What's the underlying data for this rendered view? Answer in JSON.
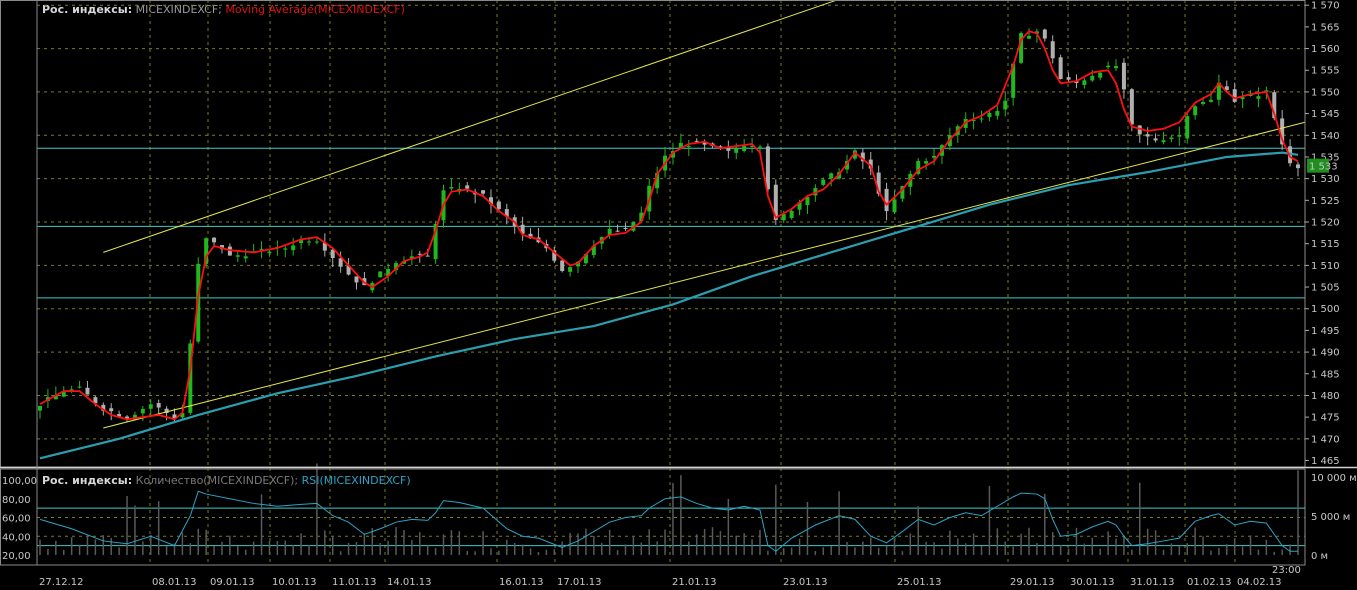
{
  "header_main": {
    "group": "Рос. индексы:",
    "symbol": "MICEXINDEXCF;",
    "indicator": "Moving Average(MICEXINDEXCF)"
  },
  "header_sub": {
    "group": "Рос. индексы:",
    "volume": "Количество(MICEXINDEXCF);",
    "rsi": "RSI(MICEXINDEXCF)"
  },
  "colors": {
    "up": "#1fb81f",
    "down": "#b0b0b0",
    "ma": "#ff1010",
    "ma_long": "#2a9fb0",
    "channel": "#e6e64a",
    "level": "#40c8c8",
    "rsi": "#2aa4c8",
    "volume": "#5a5a5a",
    "grid": "#7a7a2a",
    "last_price_bg": "#1e8f1e"
  },
  "last_price": "1 533",
  "time_label": "23:00",
  "chart_data": [
    {
      "type": "candlestick",
      "title": "",
      "y_ticks": [
        "1 465",
        "1 470",
        "1 475",
        "1 480",
        "1 485",
        "1 490",
        "1 495",
        "1 500",
        "1 505",
        "1 510",
        "1 515",
        "1 520",
        "1 525",
        "1 530",
        "1 535",
        "1 540",
        "1 545",
        "1 550",
        "1 555",
        "1 560",
        "1 565",
        "1 570"
      ],
      "ylim": [
        1463.5,
        1571.2
      ],
      "date_labels": [
        "27.12.12",
        "08.01.13",
        "09.01.13",
        "10.01.13",
        "11.01.13",
        "14.01.13",
        "16.01.13",
        "17.01.13",
        "21.01.13",
        "23.01.13",
        "25.01.13",
        "29.01.13",
        "30.01.13",
        "31.01.13",
        "01.02.13",
        "04.02.13"
      ],
      "close_path": [
        [
          0,
          1478
        ],
        [
          3,
          1481
        ],
        [
          5,
          1481.5
        ],
        [
          8,
          1477
        ],
        [
          11,
          1475
        ],
        [
          14,
          1478
        ],
        [
          17,
          1475
        ],
        [
          18,
          1476
        ],
        [
          19,
          1492
        ],
        [
          20,
          1510
        ],
        [
          21,
          1516
        ],
        [
          23,
          1514
        ],
        [
          24,
          1512
        ],
        [
          27,
          1513
        ],
        [
          31,
          1514
        ],
        [
          33,
          1516
        ],
        [
          35,
          1516
        ],
        [
          37,
          1512
        ],
        [
          39,
          1508
        ],
        [
          41,
          1505
        ],
        [
          43,
          1508
        ],
        [
          45,
          1511
        ],
        [
          47,
          1512
        ],
        [
          49,
          1512
        ],
        [
          50,
          1520
        ],
        [
          51,
          1527
        ],
        [
          53,
          1528
        ],
        [
          56,
          1526
        ],
        [
          59,
          1521
        ],
        [
          61,
          1517
        ],
        [
          64,
          1514
        ],
        [
          66,
          1509
        ],
        [
          68,
          1511
        ],
        [
          70,
          1515
        ],
        [
          72,
          1518
        ],
        [
          74,
          1518
        ],
        [
          76,
          1522
        ],
        [
          77,
          1528
        ],
        [
          79,
          1535
        ],
        [
          81,
          1538
        ],
        [
          83,
          1538
        ],
        [
          85,
          1537
        ],
        [
          87,
          1536
        ],
        [
          89,
          1538
        ],
        [
          91,
          1538
        ],
        [
          92,
          1528
        ],
        [
          93,
          1520
        ],
        [
          95,
          1523
        ],
        [
          98,
          1528
        ],
        [
          101,
          1532
        ],
        [
          103,
          1536
        ],
        [
          105,
          1532
        ],
        [
          107,
          1522
        ],
        [
          109,
          1528
        ],
        [
          111,
          1534
        ],
        [
          113,
          1535
        ],
        [
          115,
          1540
        ],
        [
          117,
          1544
        ],
        [
          119,
          1544
        ],
        [
          121,
          1546
        ],
        [
          122,
          1548
        ],
        [
          123,
          1556
        ],
        [
          124,
          1563
        ],
        [
          126,
          1564
        ],
        [
          127,
          1562
        ],
        [
          128,
          1558
        ],
        [
          129,
          1553
        ],
        [
          131,
          1552
        ],
        [
          134,
          1555
        ],
        [
          136,
          1556
        ],
        [
          137,
          1550
        ],
        [
          138,
          1542
        ],
        [
          139,
          1540
        ],
        [
          141,
          1539
        ],
        [
          144,
          1540
        ],
        [
          145,
          1545
        ],
        [
          146,
          1547
        ],
        [
          148,
          1548
        ],
        [
          149,
          1552
        ],
        [
          150,
          1551
        ],
        [
          151,
          1548
        ],
        [
          153,
          1549
        ],
        [
          155,
          1550
        ],
        [
          156,
          1544
        ],
        [
          157,
          1538
        ],
        [
          158,
          1534
        ],
        [
          159,
          1533
        ]
      ],
      "moving_average": [
        [
          0,
          1478
        ],
        [
          3,
          1481
        ],
        [
          5,
          1481
        ],
        [
          7,
          1478
        ],
        [
          9,
          1475.5
        ],
        [
          11,
          1474.5
        ],
        [
          13,
          1475
        ],
        [
          15,
          1475.5
        ],
        [
          17,
          1474.5
        ],
        [
          18,
          1476
        ],
        [
          19,
          1486
        ],
        [
          20,
          1503
        ],
        [
          21,
          1512
        ],
        [
          22,
          1514.5
        ],
        [
          24,
          1513.5
        ],
        [
          27,
          1513
        ],
        [
          30,
          1514
        ],
        [
          33,
          1516
        ],
        [
          35,
          1516.5
        ],
        [
          37,
          1514
        ],
        [
          39,
          1510
        ],
        [
          41,
          1506
        ],
        [
          42,
          1505
        ],
        [
          44,
          1507.5
        ],
        [
          46,
          1511
        ],
        [
          48,
          1512
        ],
        [
          49,
          1513
        ],
        [
          50,
          1518
        ],
        [
          51,
          1524
        ],
        [
          52,
          1527
        ],
        [
          54,
          1527.5
        ],
        [
          56,
          1526
        ],
        [
          58,
          1522.5
        ],
        [
          60,
          1520
        ],
        [
          61,
          1517
        ],
        [
          63,
          1516
        ],
        [
          65,
          1513
        ],
        [
          67,
          1510
        ],
        [
          68,
          1510.5
        ],
        [
          70,
          1514.5
        ],
        [
          72,
          1517
        ],
        [
          74,
          1517.5
        ],
        [
          76,
          1520
        ],
        [
          77,
          1525
        ],
        [
          78,
          1531
        ],
        [
          80,
          1536
        ],
        [
          82,
          1538
        ],
        [
          84,
          1538.5
        ],
        [
          86,
          1537
        ],
        [
          88,
          1537.5
        ],
        [
          90,
          1538
        ],
        [
          91,
          1536
        ],
        [
          92,
          1526
        ],
        [
          93,
          1521
        ],
        [
          95,
          1523
        ],
        [
          97,
          1526
        ],
        [
          99,
          1527.5
        ],
        [
          101,
          1531
        ],
        [
          103,
          1536
        ],
        [
          105,
          1533
        ],
        [
          106,
          1527
        ],
        [
          107,
          1524
        ],
        [
          109,
          1527.5
        ],
        [
          111,
          1532
        ],
        [
          113,
          1534
        ],
        [
          115,
          1539
        ],
        [
          117,
          1543
        ],
        [
          119,
          1544.5
        ],
        [
          121,
          1547
        ],
        [
          123,
          1556
        ],
        [
          124,
          1562
        ],
        [
          125,
          1564
        ],
        [
          126,
          1563.5
        ],
        [
          127,
          1560
        ],
        [
          128,
          1555
        ],
        [
          129,
          1552
        ],
        [
          131,
          1552.5
        ],
        [
          133,
          1554.5
        ],
        [
          135,
          1555
        ],
        [
          136,
          1552
        ],
        [
          137,
          1546
        ],
        [
          138,
          1542
        ],
        [
          140,
          1541
        ],
        [
          142,
          1541.5
        ],
        [
          144,
          1543
        ],
        [
          146,
          1547.5
        ],
        [
          148,
          1549.5
        ],
        [
          149,
          1552
        ],
        [
          150,
          1550
        ],
        [
          151,
          1548.5
        ],
        [
          153,
          1549.5
        ],
        [
          155,
          1550
        ],
        [
          156,
          1545
        ],
        [
          157,
          1539
        ],
        [
          158,
          1535
        ],
        [
          159,
          1534
        ]
      ],
      "long_ma": [
        [
          0,
          1465.5
        ],
        [
          10,
          1470
        ],
        [
          20,
          1475.5
        ],
        [
          30,
          1480.5
        ],
        [
          40,
          1484.5
        ],
        [
          50,
          1489
        ],
        [
          60,
          1493
        ],
        [
          70,
          1496
        ],
        [
          80,
          1501
        ],
        [
          90,
          1507.5
        ],
        [
          100,
          1513
        ],
        [
          110,
          1518.5
        ],
        [
          120,
          1524
        ],
        [
          130,
          1528.5
        ],
        [
          140,
          1531.5
        ],
        [
          150,
          1535
        ],
        [
          157,
          1536
        ],
        [
          159,
          1535.5
        ]
      ],
      "channel_upper": [
        [
          8,
          1513
        ],
        [
          102,
          1572
        ]
      ],
      "channel_lower": [
        [
          8,
          1472.5
        ],
        [
          159,
          1543
        ]
      ],
      "horizontal_levels": [
        1502.5,
        1519,
        1537
      ]
    },
    {
      "type": "line",
      "title": "",
      "rsi_ticks": [
        "100,00",
        "80,00",
        "60,00",
        "40,00",
        "20,00"
      ],
      "volume_ticks": [
        "10 000 м",
        "5 000 м",
        "0 м"
      ],
      "rsi_levels": [
        70,
        30
      ],
      "rsi_path": [
        [
          0,
          58
        ],
        [
          4,
          48
        ],
        [
          8,
          35
        ],
        [
          11,
          32
        ],
        [
          14,
          40
        ],
        [
          17,
          30
        ],
        [
          19,
          62
        ],
        [
          20,
          88
        ],
        [
          21,
          85
        ],
        [
          24,
          80
        ],
        [
          27,
          75
        ],
        [
          30,
          72
        ],
        [
          33,
          74
        ],
        [
          35,
          75
        ],
        [
          37,
          62
        ],
        [
          39,
          55
        ],
        [
          41,
          42
        ],
        [
          43,
          48
        ],
        [
          45,
          55
        ],
        [
          47,
          58
        ],
        [
          49,
          57
        ],
        [
          50,
          65
        ],
        [
          51,
          78
        ],
        [
          53,
          76
        ],
        [
          56,
          70
        ],
        [
          59,
          48
        ],
        [
          61,
          40
        ],
        [
          63,
          38
        ],
        [
          66,
          28
        ],
        [
          68,
          35
        ],
        [
          70,
          45
        ],
        [
          72,
          55
        ],
        [
          74,
          60
        ],
        [
          76,
          62
        ],
        [
          77,
          70
        ],
        [
          79,
          80
        ],
        [
          81,
          82
        ],
        [
          83,
          75
        ],
        [
          85,
          70
        ],
        [
          87,
          68
        ],
        [
          89,
          72
        ],
        [
          91,
          68
        ],
        [
          92,
          30
        ],
        [
          93,
          24
        ],
        [
          95,
          38
        ],
        [
          98,
          52
        ],
        [
          101,
          62
        ],
        [
          103,
          58
        ],
        [
          105,
          40
        ],
        [
          107,
          33
        ],
        [
          109,
          45
        ],
        [
          111,
          58
        ],
        [
          113,
          52
        ],
        [
          115,
          60
        ],
        [
          117,
          65
        ],
        [
          119,
          62
        ],
        [
          121,
          72
        ],
        [
          123,
          82
        ],
        [
          124,
          86
        ],
        [
          126,
          85
        ],
        [
          127,
          80
        ],
        [
          128,
          58
        ],
        [
          129,
          40
        ],
        [
          131,
          42
        ],
        [
          133,
          50
        ],
        [
          135,
          56
        ],
        [
          136,
          52
        ],
        [
          137,
          40
        ],
        [
          138,
          30
        ],
        [
          140,
          32
        ],
        [
          142,
          35
        ],
        [
          144,
          38
        ],
        [
          146,
          56
        ],
        [
          148,
          62
        ],
        [
          149,
          64
        ],
        [
          151,
          52
        ],
        [
          153,
          56
        ],
        [
          155,
          54
        ],
        [
          156,
          42
        ],
        [
          157,
          30
        ],
        [
          158,
          24
        ],
        [
          159,
          24
        ]
      ],
      "volume_ticks_count": 160
    }
  ]
}
